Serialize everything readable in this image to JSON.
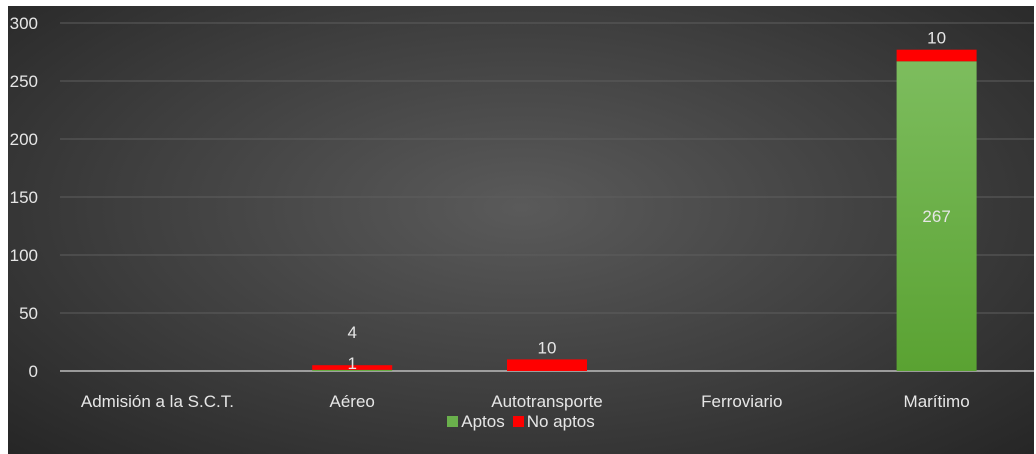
{
  "chart_data": {
    "type": "bar",
    "stacked": true,
    "categories": [
      "Admisión a la S.C.T.",
      "Aéreo",
      "Autotransporte",
      "Ferroviario",
      "Marítimo"
    ],
    "series": [
      {
        "name": "Aptos",
        "values": [
          0,
          1,
          0,
          0,
          267
        ],
        "color": "#6ab04c"
      },
      {
        "name": "No aptos",
        "values": [
          0,
          4,
          10,
          0,
          10
        ],
        "color": "#ff0000"
      }
    ],
    "data_labels": [
      {
        "category": "Aéreo",
        "series": "Aptos",
        "text": "1"
      },
      {
        "category": "Aéreo",
        "series": "No aptos",
        "text": "4"
      },
      {
        "category": "Autotransporte",
        "series": "No aptos",
        "text": "10"
      },
      {
        "category": "Marítimo",
        "series": "Aptos",
        "text": "267"
      },
      {
        "category": "Marítimo",
        "series": "No aptos",
        "text": "10"
      }
    ],
    "y_ticks": [
      "0",
      "50",
      "100",
      "150",
      "200",
      "250",
      "300"
    ],
    "ylim": [
      0,
      300
    ],
    "title": "",
    "xlabel": "",
    "ylabel": "",
    "grid": true,
    "legend_position": "bottom",
    "background": "#3c3c3c"
  }
}
